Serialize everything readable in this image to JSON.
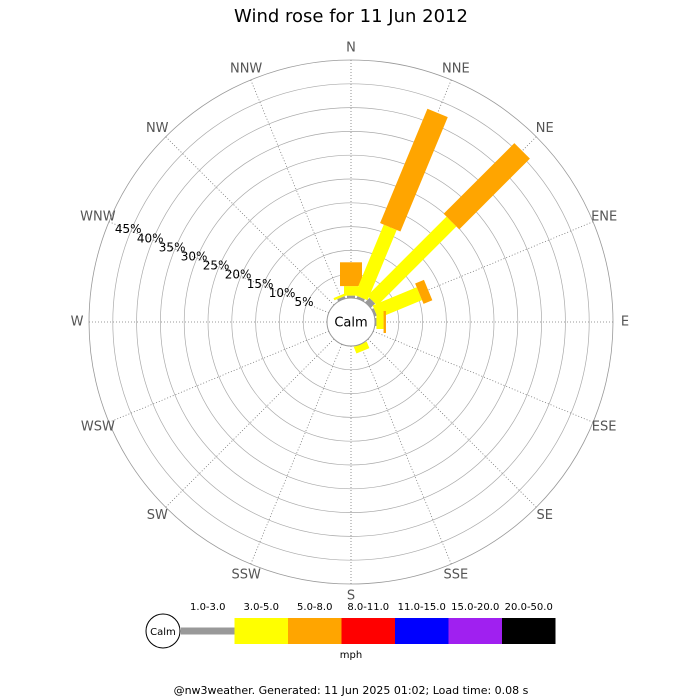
{
  "chart_data": {
    "type": "windrose",
    "title": "Wind rose for 11 Jun 2012",
    "categories": [
      "N",
      "NNE",
      "NE",
      "ENE",
      "E",
      "ESE",
      "SE",
      "SSE",
      "S",
      "SSW",
      "SW",
      "WSW",
      "W",
      "WNW",
      "NW",
      "NNW"
    ],
    "calm_label": "Calm",
    "unit_label": "mph",
    "footer": "@nw3weather. Generated: 11 Jun 2025 01:02; Load time: 0.08 s",
    "ylim": [
      0,
      50
    ],
    "yticks": [
      {
        "value": 5,
        "label": "5%"
      },
      {
        "value": 10,
        "label": "10%"
      },
      {
        "value": 15,
        "label": "15%"
      },
      {
        "value": 20,
        "label": "20%"
      },
      {
        "value": 25,
        "label": "25%"
      },
      {
        "value": 30,
        "label": "30%"
      },
      {
        "value": 35,
        "label": "35%"
      },
      {
        "value": 40,
        "label": "40%"
      },
      {
        "value": 45,
        "label": "45%"
      }
    ],
    "series": [
      {
        "name": "1.0-3.0",
        "color": "#999999",
        "values": [
          0.5,
          0.5,
          1.3,
          0.5,
          0.3,
          0,
          0,
          0,
          0,
          0,
          0,
          0,
          0,
          0,
          0,
          0.5
        ]
      },
      {
        "name": "3.0-5.0",
        "color": "#ffff00",
        "values": [
          2,
          16,
          23.5,
          10,
          1.5,
          0,
          0,
          1.5,
          0,
          0,
          0,
          0,
          0,
          0,
          0,
          0.5
        ]
      },
      {
        "name": "5.0-8.0",
        "color": "#ffa500",
        "values": [
          5,
          26,
          21,
          2,
          0.5,
          0,
          0,
          0,
          0,
          0,
          0,
          0,
          0,
          0,
          0,
          0
        ]
      },
      {
        "name": "8.0-11.0",
        "color": "#ff0000",
        "values": [
          0,
          0,
          0,
          0,
          0,
          0,
          0,
          0,
          0,
          0,
          0,
          0,
          0,
          0,
          0,
          0
        ]
      },
      {
        "name": "11.0-15.0",
        "color": "#0000ff",
        "values": [
          0,
          0,
          0,
          0,
          0,
          0,
          0,
          0,
          0,
          0,
          0,
          0,
          0,
          0,
          0,
          0
        ]
      },
      {
        "name": "15.0-20.0",
        "color": "#a020f0",
        "values": [
          0,
          0,
          0,
          0,
          0,
          0,
          0,
          0,
          0,
          0,
          0,
          0,
          0,
          0,
          0,
          0
        ]
      },
      {
        "name": "20.0-50.0",
        "color": "#000000",
        "values": [
          0,
          0,
          0,
          0,
          0,
          0,
          0,
          0,
          0,
          0,
          0,
          0,
          0,
          0,
          0,
          0
        ]
      }
    ]
  }
}
